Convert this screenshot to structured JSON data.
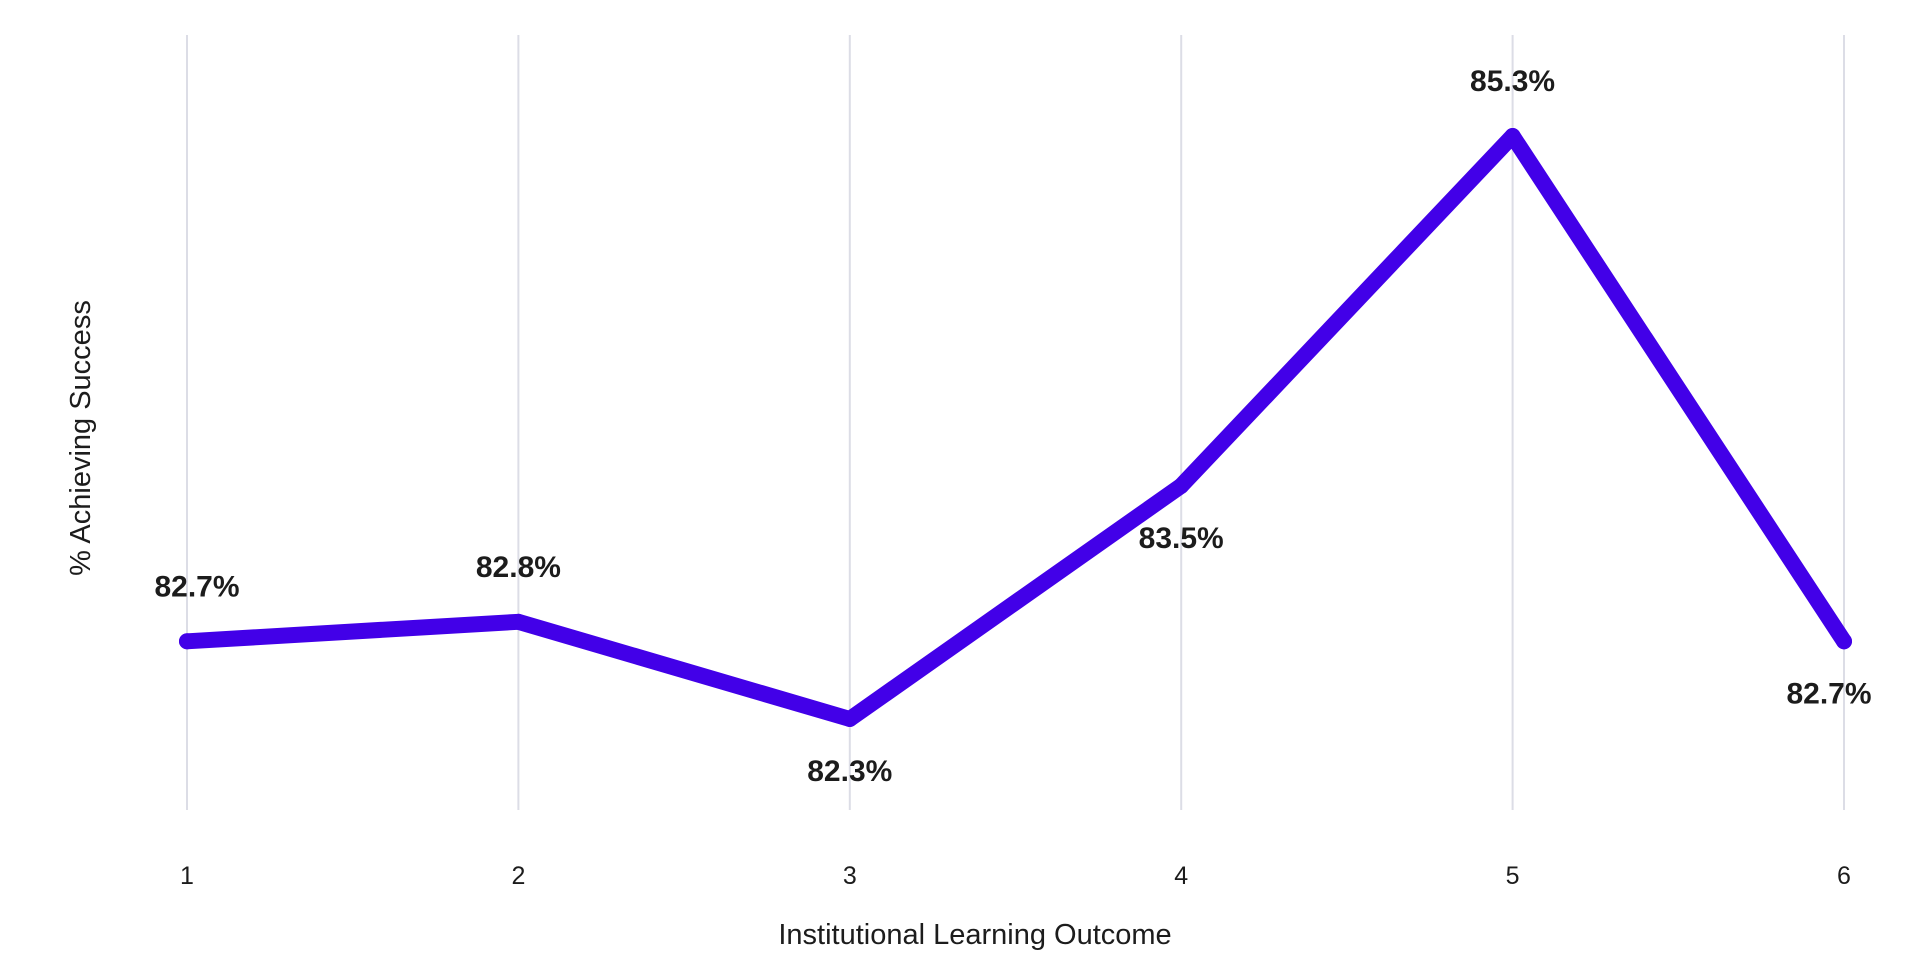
{
  "chart_data": {
    "type": "line",
    "title": "",
    "xlabel": "Institutional Learning Outcome",
    "ylabel": "% Achieving Success",
    "categories": [
      "1",
      "2",
      "3",
      "4",
      "5",
      "6"
    ],
    "series": [
      {
        "values": [
          82.7,
          82.8,
          82.3,
          83.5,
          85.3,
          82.7
        ],
        "labels": [
          "82.7%",
          "82.8%",
          "82.3%",
          "83.5%",
          "85.3%",
          "82.7%"
        ],
        "label_positions": [
          "above",
          "above",
          "below",
          "below",
          "above",
          "below"
        ]
      }
    ],
    "ylim": [
      81.3,
      86.0
    ],
    "grid": "vertical",
    "legend": "none",
    "colors": {
      "line": "#4200e8",
      "grid": "#dcdde6",
      "text": "#1c1c1c"
    }
  }
}
